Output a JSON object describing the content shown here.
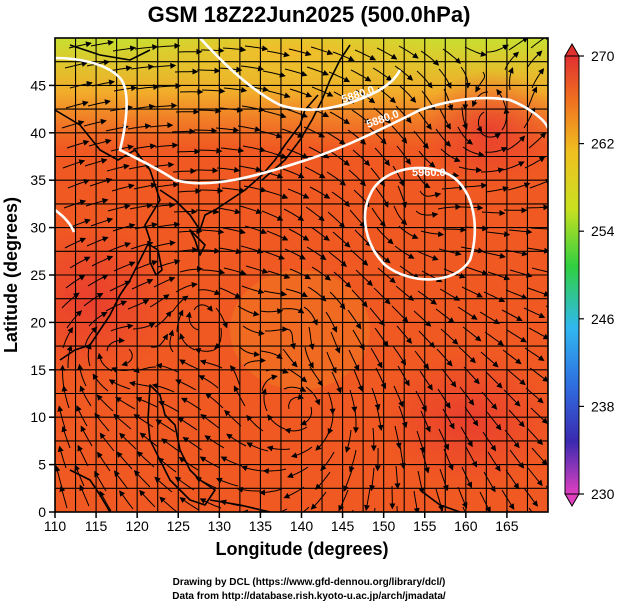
{
  "title": "GSM 18Z22Jun2025 (500.0hPa)",
  "x_axis": {
    "label": "Longitude (degrees)",
    "range": [
      110,
      170
    ],
    "ticks": [
      110,
      115,
      120,
      125,
      130,
      135,
      140,
      145,
      150,
      155,
      160,
      165
    ]
  },
  "y_axis": {
    "label": "Latitude  (degrees)",
    "range": [
      0,
      50
    ],
    "ticks": [
      0,
      5,
      10,
      15,
      20,
      25,
      30,
      35,
      40,
      45
    ]
  },
  "colorbar": {
    "range": [
      230,
      270
    ],
    "ticks": [
      230,
      238,
      246,
      254,
      262,
      270
    ],
    "colors": [
      "#e040c0",
      "#3030c0",
      "#30a0f0",
      "#30d040",
      "#e0e020",
      "#f08020",
      "#e04030"
    ]
  },
  "contours": {
    "labels": [
      "5880.0",
      "5880.0",
      "5960.0"
    ]
  },
  "credits": {
    "line1": "Drawing by DCL (https://www.gfd-dennou.org/library/dcl/)",
    "line2": "Data from http://database.rish.kyoto-u.ac.jp/arch/jmadata/"
  }
}
